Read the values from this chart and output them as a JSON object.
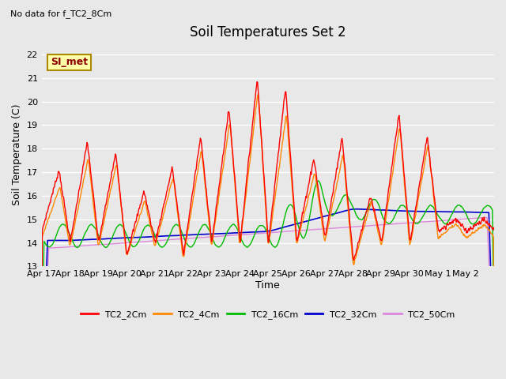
{
  "title": "Soil Temperatures Set 2",
  "subtitle": "No data for f_TC2_8Cm",
  "xlabel": "Time",
  "ylabel": "Soil Temperature (C)",
  "ylim": [
    13.0,
    22.5
  ],
  "yticks": [
    13.0,
    14.0,
    15.0,
    16.0,
    17.0,
    18.0,
    19.0,
    20.0,
    21.0,
    22.0
  ],
  "xtick_labels": [
    "Apr 17",
    "Apr 18",
    "Apr 19",
    "Apr 20",
    "Apr 21",
    "Apr 22",
    "Apr 23",
    "Apr 24",
    "Apr 25",
    "Apr 26",
    "Apr 27",
    "Apr 28",
    "Apr 29",
    "Apr 30",
    "May 1",
    "May 2"
  ],
  "bg_color": "#e8e8e8",
  "plot_bg_color": "#e8e8e8",
  "grid_color": "white",
  "legend_label": "SI_met",
  "colors": {
    "TC2_2Cm": "#ff0000",
    "TC2_4Cm": "#ff8800",
    "TC2_16Cm": "#00bb00",
    "TC2_32Cm": "#0000cc",
    "TC2_50Cm": "#dd88dd"
  },
  "n_days": 16,
  "ppd": 48
}
